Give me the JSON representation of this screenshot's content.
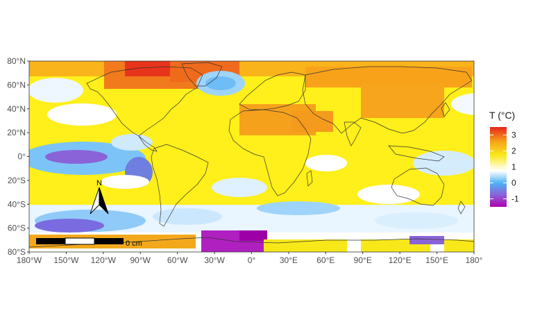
{
  "legend": {
    "title": "T (°C)",
    "labels": [
      "3",
      "2",
      "1",
      "0",
      "-1"
    ],
    "values": [
      3,
      2,
      1,
      0,
      -1
    ],
    "colors": [
      "#e8251a",
      "#f7a21a",
      "#f8e81a",
      "#ffffff",
      "#4fb3f5",
      "#8a63d8",
      "#b000b0"
    ]
  },
  "axes": {
    "x_ticks": [
      "180°W",
      "150°W",
      "120°W",
      "90°W",
      "60°W",
      "30°W",
      "0°",
      "30°E",
      "60°E",
      "90°E",
      "120°E",
      "150°E",
      "180°"
    ],
    "x_values": [
      -180,
      -150,
      -120,
      -90,
      -60,
      -30,
      0,
      30,
      60,
      90,
      120,
      150,
      180
    ],
    "y_ticks": [
      "80°N",
      "60°N",
      "40°N",
      "20°N",
      "0°",
      "20°S",
      "40°S",
      "60°S",
      "80°S"
    ],
    "y_values": [
      80,
      60,
      40,
      20,
      0,
      -20,
      -40,
      -60,
      -80
    ],
    "xlim": [
      -180,
      180
    ],
    "ylim": [
      -80,
      80
    ]
  },
  "north_arrow": {
    "label": "N"
  },
  "scale_bar": {
    "label": "0 cm"
  }
}
